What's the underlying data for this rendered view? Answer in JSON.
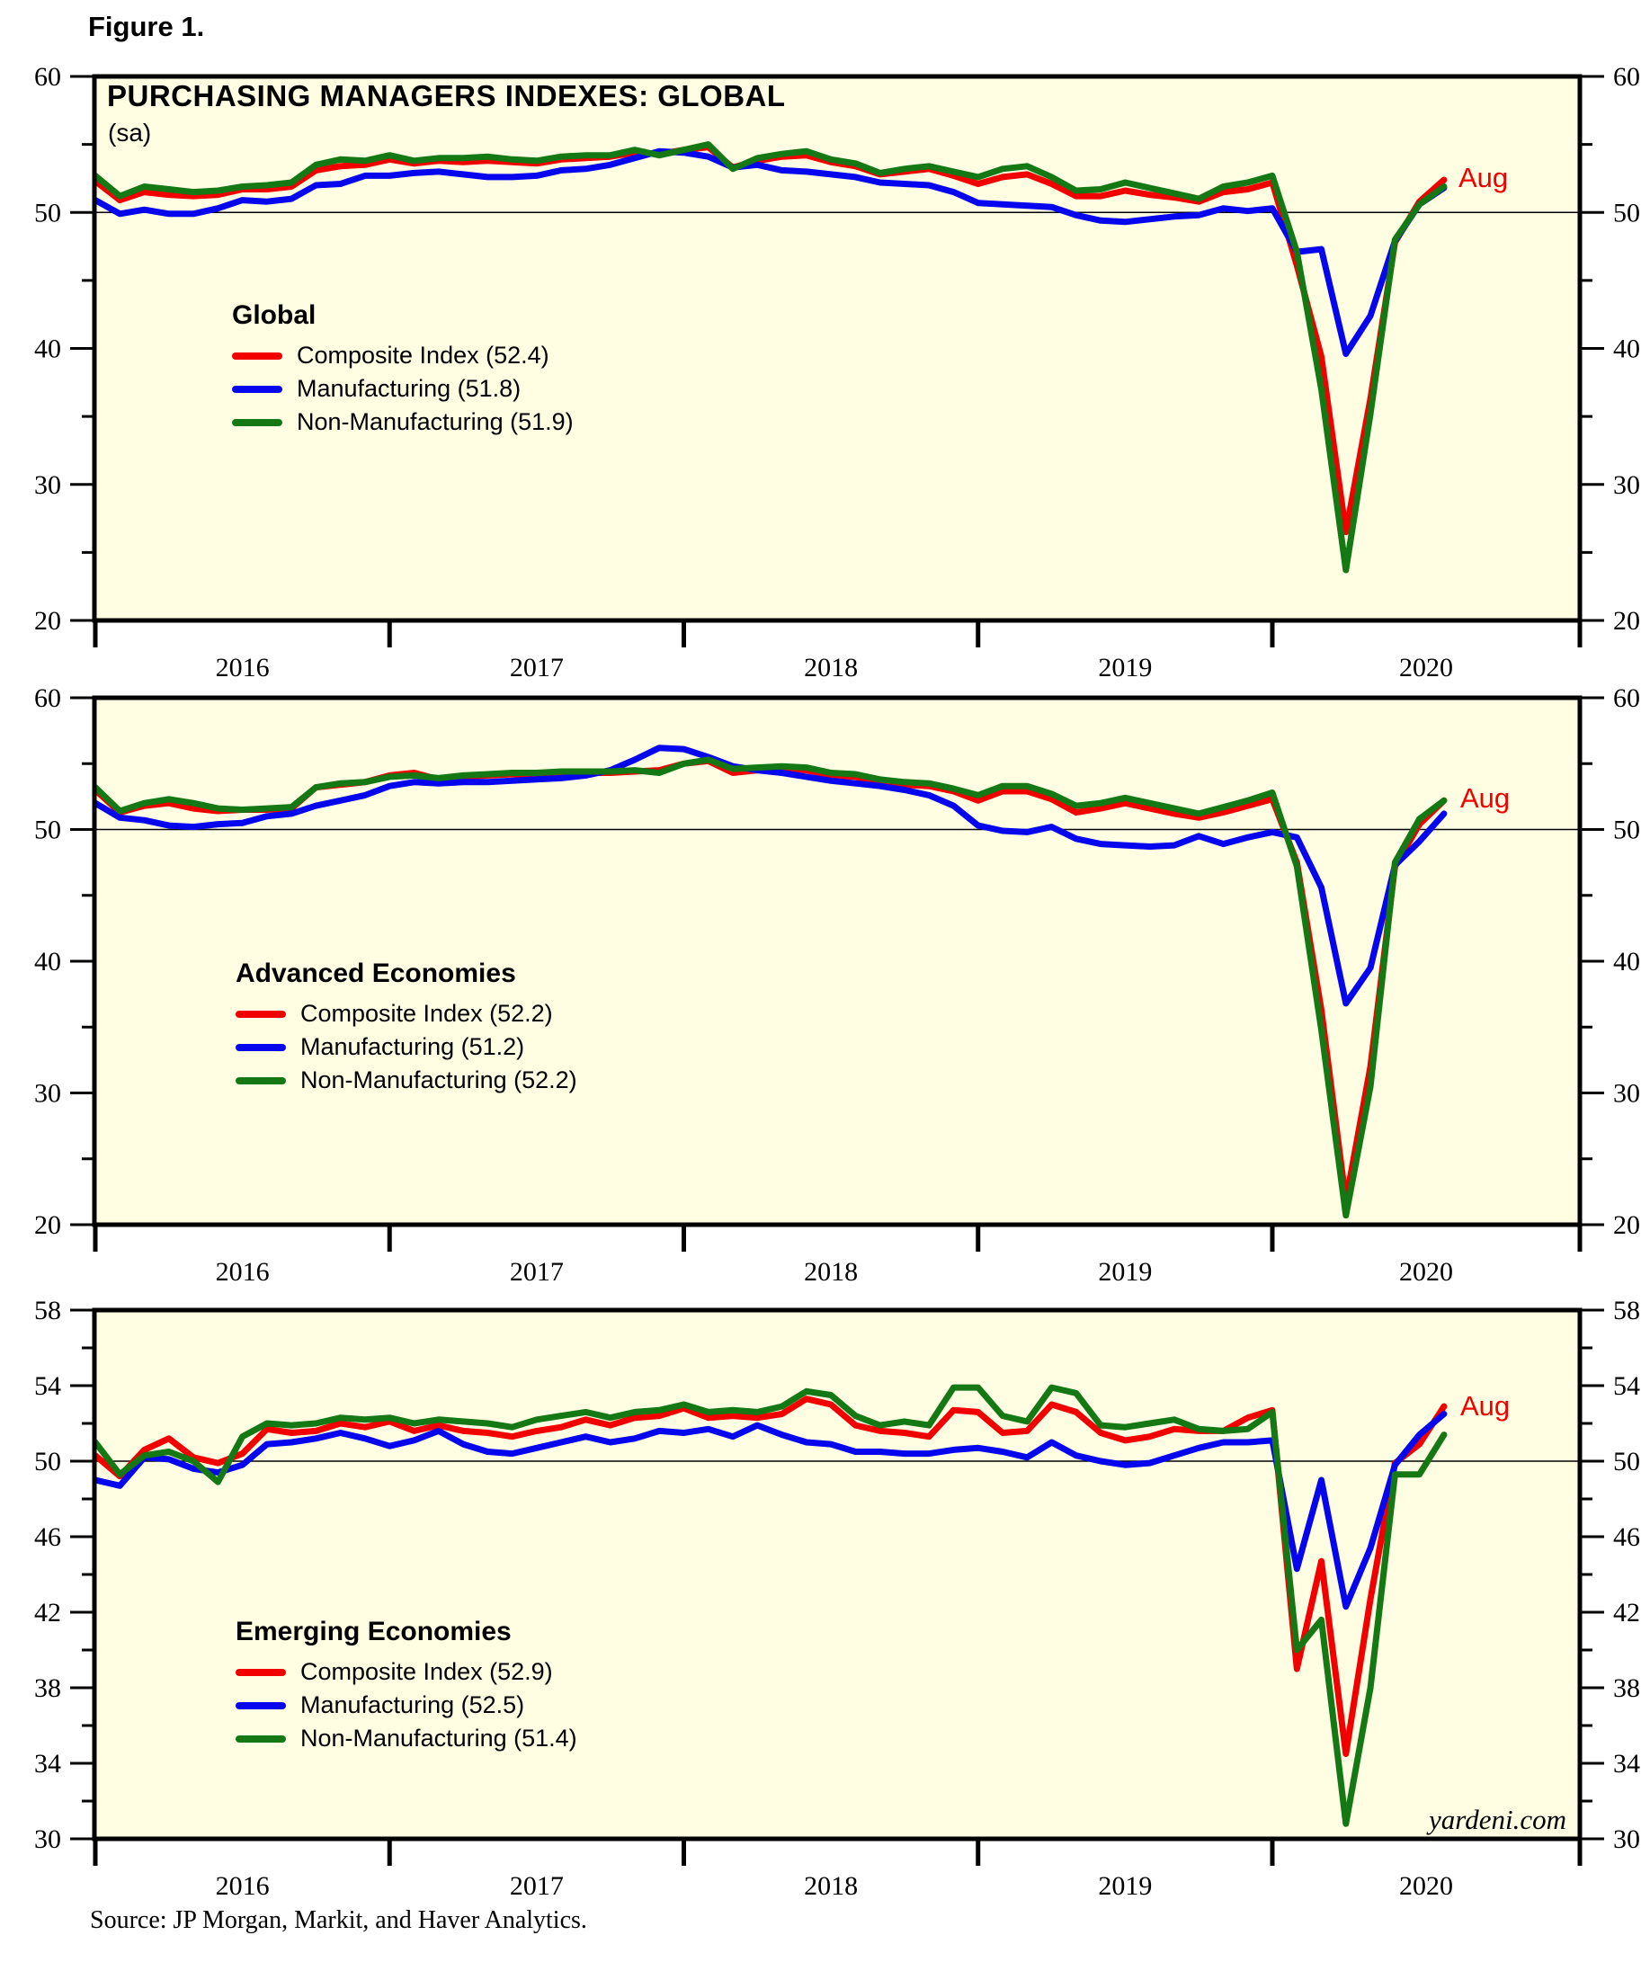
{
  "figure_label": "Figure 1.",
  "title": "PURCHASING MANAGERS INDEXES: GLOBAL",
  "subtitle": "(sa)",
  "source_note": "Source: JP Morgan, Markit, and Haver Analytics.",
  "watermark": "yardeni.com",
  "colors": {
    "composite": "#f20000",
    "manufacturing": "#0606ee",
    "non_manufacturing": "#147814",
    "plot_background": "#fffee2",
    "axis": "#000000"
  },
  "x_axis_years": [
    "2016",
    "2017",
    "2018",
    "2019",
    "2020"
  ],
  "chart_data": [
    {
      "type": "line",
      "title": "Global",
      "annotation": "Aug",
      "ylim": [
        20,
        60
      ],
      "yticks": [
        20,
        30,
        40,
        50,
        60
      ],
      "gridline": 50,
      "x_start": "2016-01",
      "x_end": "2020-08",
      "legend_position": "upper-left-inside",
      "series": [
        {
          "name": "Composite Index (52.4)",
          "color_key": "composite",
          "values": [
            52.3,
            50.9,
            51.5,
            51.3,
            51.2,
            51.3,
            51.7,
            51.7,
            51.9,
            53.1,
            53.4,
            53.5,
            53.9,
            53.6,
            53.8,
            53.7,
            53.8,
            53.7,
            53.6,
            53.9,
            54.0,
            54.1,
            54.4,
            54.3,
            54.6,
            54.8,
            53.3,
            53.8,
            54.1,
            54.2,
            53.7,
            53.4,
            52.8,
            53.0,
            53.2,
            52.7,
            52.1,
            52.6,
            52.8,
            52.1,
            51.2,
            51.2,
            51.6,
            51.3,
            51.1,
            50.8,
            51.5,
            51.7,
            52.2,
            46.1,
            39.4,
            26.5,
            36.3,
            47.8,
            50.8,
            52.4
          ]
        },
        {
          "name": "Manufacturing (51.8)",
          "color_key": "manufacturing",
          "values": [
            50.9,
            49.9,
            50.2,
            49.9,
            49.9,
            50.3,
            50.9,
            50.8,
            51.0,
            52.0,
            52.1,
            52.7,
            52.7,
            52.9,
            53.0,
            52.8,
            52.6,
            52.6,
            52.7,
            53.1,
            53.2,
            53.5,
            54.0,
            54.5,
            54.4,
            54.1,
            53.3,
            53.5,
            53.1,
            53.0,
            52.8,
            52.6,
            52.2,
            52.1,
            52.0,
            51.5,
            50.7,
            50.6,
            50.5,
            50.4,
            49.8,
            49.4,
            49.3,
            49.5,
            49.7,
            49.8,
            50.3,
            50.1,
            50.3,
            47.1,
            47.3,
            39.6,
            42.4,
            47.9,
            50.6,
            51.8
          ]
        },
        {
          "name": "Non-Manufacturing (51.9)",
          "color_key": "non_manufacturing",
          "values": [
            52.7,
            51.2,
            51.9,
            51.7,
            51.5,
            51.6,
            51.9,
            52.0,
            52.2,
            53.5,
            53.9,
            53.8,
            54.2,
            53.8,
            54.0,
            54.0,
            54.1,
            53.9,
            53.8,
            54.1,
            54.2,
            54.2,
            54.6,
            54.2,
            54.6,
            55.0,
            53.2,
            54.0,
            54.3,
            54.5,
            53.9,
            53.6,
            52.9,
            53.2,
            53.4,
            53.0,
            52.6,
            53.2,
            53.4,
            52.6,
            51.6,
            51.7,
            52.2,
            51.8,
            51.4,
            51.0,
            51.9,
            52.2,
            52.7,
            47.1,
            37.0,
            23.7,
            35.2,
            48.0,
            50.6,
            51.9
          ]
        }
      ]
    },
    {
      "type": "line",
      "title": "Advanced Economies",
      "annotation": "Aug",
      "ylim": [
        20,
        60
      ],
      "yticks": [
        20,
        30,
        40,
        50,
        60
      ],
      "gridline": 50,
      "x_start": "2016-01",
      "x_end": "2020-08",
      "legend_position": "middle-left-inside",
      "series": [
        {
          "name": "Composite Index (52.2)",
          "color_key": "composite",
          "values": [
            53.0,
            51.3,
            51.8,
            52.0,
            51.6,
            51.4,
            51.5,
            51.5,
            51.6,
            53.2,
            53.4,
            53.6,
            54.1,
            54.3,
            53.8,
            54.0,
            54.1,
            54.2,
            54.2,
            54.3,
            54.3,
            54.3,
            54.4,
            54.5,
            55.0,
            55.2,
            54.3,
            54.5,
            54.6,
            54.5,
            54.1,
            54.0,
            53.5,
            53.4,
            53.3,
            52.9,
            52.2,
            52.9,
            52.9,
            52.3,
            51.3,
            51.6,
            52.0,
            51.6,
            51.2,
            50.9,
            51.3,
            51.8,
            52.3,
            47.5,
            36.3,
            21.8,
            32.0,
            47.2,
            50.4,
            52.2
          ]
        },
        {
          "name": "Manufacturing (51.2)",
          "color_key": "manufacturing",
          "values": [
            52.0,
            50.9,
            50.7,
            50.3,
            50.2,
            50.4,
            50.5,
            51.0,
            51.2,
            51.8,
            52.2,
            52.6,
            53.3,
            53.6,
            53.5,
            53.6,
            53.6,
            53.7,
            53.8,
            53.9,
            54.1,
            54.5,
            55.3,
            56.2,
            56.1,
            55.5,
            54.8,
            54.5,
            54.3,
            54.0,
            53.7,
            53.5,
            53.3,
            53.0,
            52.6,
            51.8,
            50.3,
            49.9,
            49.8,
            50.2,
            49.3,
            48.9,
            48.8,
            48.7,
            48.8,
            49.5,
            48.9,
            49.4,
            49.8,
            49.4,
            45.6,
            36.8,
            39.5,
            47.3,
            49.1,
            51.2
          ]
        },
        {
          "name": "Non-Manufacturing (52.2)",
          "color_key": "non_manufacturing",
          "values": [
            53.2,
            51.4,
            52.0,
            52.3,
            52.0,
            51.6,
            51.5,
            51.6,
            51.7,
            53.2,
            53.5,
            53.6,
            54.0,
            54.1,
            53.9,
            54.1,
            54.2,
            54.3,
            54.3,
            54.4,
            54.4,
            54.4,
            54.5,
            54.3,
            55.0,
            55.3,
            54.6,
            54.7,
            54.8,
            54.7,
            54.3,
            54.2,
            53.8,
            53.6,
            53.5,
            53.1,
            52.6,
            53.3,
            53.3,
            52.7,
            51.8,
            52.0,
            52.4,
            52.0,
            51.6,
            51.2,
            51.7,
            52.2,
            52.8,
            47.2,
            34.8,
            20.7,
            30.5,
            47.5,
            50.8,
            52.2
          ]
        }
      ]
    },
    {
      "type": "line",
      "title": "Emerging Economies",
      "annotation": "Aug",
      "ylim": [
        30,
        58
      ],
      "yticks": [
        30,
        34,
        38,
        42,
        46,
        50,
        54,
        58
      ],
      "gridline": 50,
      "x_start": "2016-01",
      "x_end": "2020-08",
      "legend_position": "lower-left-inside",
      "series": [
        {
          "name": "Composite Index (52.9)",
          "color_key": "composite",
          "values": [
            50.3,
            49.2,
            50.6,
            51.2,
            50.2,
            49.9,
            50.4,
            51.7,
            51.5,
            51.6,
            52.0,
            51.8,
            52.1,
            51.6,
            51.9,
            51.6,
            51.5,
            51.3,
            51.6,
            51.8,
            52.2,
            51.9,
            52.3,
            52.4,
            52.8,
            52.3,
            52.4,
            52.3,
            52.5,
            53.3,
            53.0,
            51.9,
            51.6,
            51.5,
            51.3,
            52.7,
            52.6,
            51.5,
            51.6,
            53.0,
            52.6,
            51.5,
            51.1,
            51.3,
            51.7,
            51.6,
            51.6,
            52.3,
            52.7,
            39.0,
            44.7,
            34.5,
            42.7,
            49.9,
            50.9,
            52.9
          ]
        },
        {
          "name": "Manufacturing (52.5)",
          "color_key": "manufacturing",
          "values": [
            49.0,
            48.7,
            50.2,
            50.1,
            49.6,
            49.4,
            49.8,
            50.9,
            51.0,
            51.2,
            51.5,
            51.2,
            50.8,
            51.1,
            51.6,
            50.9,
            50.5,
            50.4,
            50.7,
            51.0,
            51.3,
            51.0,
            51.2,
            51.6,
            51.5,
            51.7,
            51.3,
            51.9,
            51.4,
            51.0,
            50.9,
            50.5,
            50.5,
            50.4,
            50.4,
            50.6,
            50.7,
            50.5,
            50.2,
            51.0,
            50.3,
            50.0,
            49.8,
            49.9,
            50.3,
            50.7,
            51.0,
            51.0,
            51.1,
            44.3,
            49.0,
            42.3,
            45.4,
            49.8,
            51.4,
            52.5
          ]
        },
        {
          "name": "Non-Manufacturing (51.4)",
          "color_key": "non_manufacturing",
          "values": [
            51.0,
            49.3,
            50.3,
            50.5,
            50.0,
            48.9,
            51.3,
            52.0,
            51.9,
            52.0,
            52.3,
            52.2,
            52.3,
            52.0,
            52.2,
            52.1,
            52.0,
            51.8,
            52.2,
            52.4,
            52.6,
            52.3,
            52.6,
            52.7,
            53.0,
            52.6,
            52.7,
            52.6,
            52.9,
            53.7,
            53.5,
            52.4,
            51.9,
            52.1,
            51.9,
            53.9,
            53.9,
            52.4,
            52.1,
            53.9,
            53.6,
            51.9,
            51.8,
            52.0,
            52.2,
            51.7,
            51.6,
            51.7,
            52.6,
            40.0,
            41.6,
            30.8,
            38.0,
            49.3,
            49.3,
            51.4
          ]
        }
      ]
    }
  ]
}
